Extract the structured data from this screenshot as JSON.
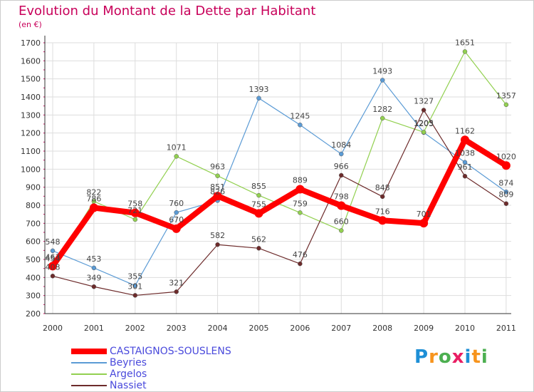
{
  "title": "Evolution du Montant de la Dette par Habitant",
  "subtitle": "(en €)",
  "logo": {
    "text": "Proxiti",
    "letters": [
      "P",
      "r",
      "o",
      "x",
      "i",
      "t",
      "i"
    ],
    "colors": [
      "#1e8fd6",
      "#f7941d",
      "#4caf50",
      "#e91e63",
      "#1e8fd6",
      "#f7941d",
      "#4caf50"
    ]
  },
  "chart_data": {
    "type": "line",
    "categories": [
      "2000",
      "2001",
      "2002",
      "2003",
      "2004",
      "2005",
      "2006",
      "2007",
      "2008",
      "2009",
      "2010",
      "2011"
    ],
    "ylim": [
      200,
      1700
    ],
    "yticks": [
      "200",
      "300",
      "400",
      "500",
      "600",
      "700",
      "800",
      "900",
      "1000",
      "1100",
      "1200",
      "1300",
      "1400",
      "1500",
      "1600",
      "1700"
    ],
    "grid": true,
    "legend_position": "bottom-left",
    "series": [
      {
        "name": "Beyries",
        "color": "#5b9bd5",
        "values": [
          548,
          453,
          355,
          760,
          826,
          1393,
          1245,
          1084,
          1493,
          1203,
          1038,
          874
        ]
      },
      {
        "name": "Argelos",
        "color": "#92d050",
        "values": [
          454,
          822,
          721,
          1071,
          963,
          855,
          759,
          660,
          1282,
          1205,
          1651,
          1357
        ]
      },
      {
        "name": "Nassiet",
        "color": "#6d2b2b",
        "values": [
          408,
          349,
          301,
          321,
          582,
          562,
          476,
          966,
          848,
          1327,
          961,
          809
        ]
      },
      {
        "name": "CASTAIGNOS-SOUSLENS",
        "color": "#ff0000",
        "values": [
          463,
          786,
          758,
          670,
          851,
          755,
          889,
          798,
          716,
          701,
          1162,
          1020
        ]
      }
    ],
    "labels": [
      {
        "text": "548",
        "x": "2000",
        "y": 548
      },
      {
        "text": "453",
        "x": "2001",
        "y": 453
      },
      {
        "text": "355",
        "x": "2002",
        "y": 355
      },
      {
        "text": "760",
        "x": "2003",
        "y": 760
      },
      {
        "text": "826",
        "x": "2004",
        "y": 826
      },
      {
        "text": "1393",
        "x": "2005",
        "y": 1393
      },
      {
        "text": "1245",
        "x": "2006",
        "y": 1245
      },
      {
        "text": "1084",
        "x": "2007",
        "y": 1084
      },
      {
        "text": "1493",
        "x": "2008",
        "y": 1493
      },
      {
        "text": "1203",
        "x": "2009",
        "y": 1203
      },
      {
        "text": "1038",
        "x": "2010",
        "y": 1038
      },
      {
        "text": "874",
        "x": "2011",
        "y": 874
      },
      {
        "text": "454",
        "x": "2000",
        "y": 454
      },
      {
        "text": "822",
        "x": "2001",
        "y": 822
      },
      {
        "text": "721",
        "x": "2002",
        "y": 721
      },
      {
        "text": "1071",
        "x": "2003",
        "y": 1071
      },
      {
        "text": "963",
        "x": "2004",
        "y": 963
      },
      {
        "text": "855",
        "x": "2005",
        "y": 855
      },
      {
        "text": "759",
        "x": "2006",
        "y": 759
      },
      {
        "text": "660",
        "x": "2007",
        "y": 660
      },
      {
        "text": "1282",
        "x": "2008",
        "y": 1282
      },
      {
        "text": "1205",
        "x": "2009",
        "y": 1205
      },
      {
        "text": "1651",
        "x": "2010",
        "y": 1651
      },
      {
        "text": "1357",
        "x": "2011",
        "y": 1357
      },
      {
        "text": "408",
        "x": "2000",
        "y": 408
      },
      {
        "text": "349",
        "x": "2001",
        "y": 349
      },
      {
        "text": "301",
        "x": "2002",
        "y": 301
      },
      {
        "text": "321",
        "x": "2003",
        "y": 321
      },
      {
        "text": "582",
        "x": "2004",
        "y": 582
      },
      {
        "text": "562",
        "x": "2005",
        "y": 562
      },
      {
        "text": "476",
        "x": "2006",
        "y": 476
      },
      {
        "text": "966",
        "x": "2007",
        "y": 966
      },
      {
        "text": "848",
        "x": "2008",
        "y": 848
      },
      {
        "text": "1327",
        "x": "2009",
        "y": 1327
      },
      {
        "text": "961",
        "x": "2010",
        "y": 961
      },
      {
        "text": "809",
        "x": "2011",
        "y": 809
      },
      {
        "text": "463",
        "x": "2000",
        "y": 463
      },
      {
        "text": "786",
        "x": "2001",
        "y": 786
      },
      {
        "text": "758",
        "x": "2002",
        "y": 758
      },
      {
        "text": "670",
        "x": "2003",
        "y": 670
      },
      {
        "text": "851",
        "x": "2004",
        "y": 851
      },
      {
        "text": "755",
        "x": "2005",
        "y": 755
      },
      {
        "text": "889",
        "x": "2006",
        "y": 889
      },
      {
        "text": "798",
        "x": "2007",
        "y": 798
      },
      {
        "text": "716",
        "x": "2008",
        "y": 716
      },
      {
        "text": "701",
        "x": "2009",
        "y": 701
      },
      {
        "text": "1162",
        "x": "2010",
        "y": 1162
      },
      {
        "text": "1020",
        "x": "2011",
        "y": 1020
      }
    ]
  },
  "legend": {
    "items": [
      {
        "label": "CASTAIGNOS-SOUSLENS",
        "color": "#ff0000"
      },
      {
        "label": "Beyries",
        "color": "#5b9bd5"
      },
      {
        "label": "Argelos",
        "color": "#92d050"
      },
      {
        "label": "Nassiet",
        "color": "#6d2b2b"
      }
    ]
  }
}
